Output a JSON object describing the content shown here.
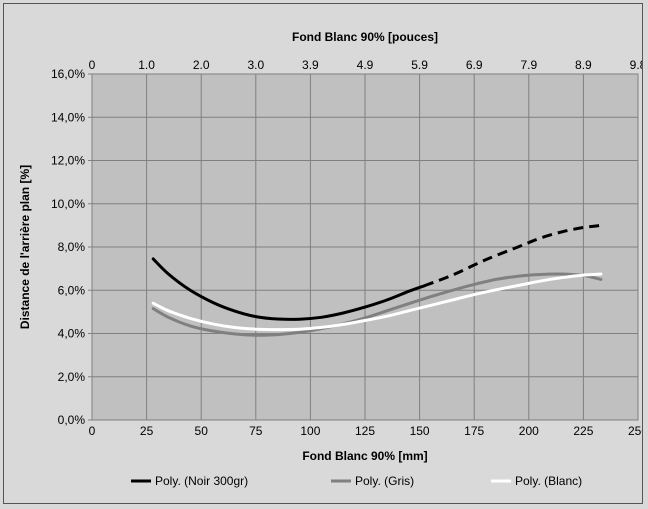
{
  "chart_data": {
    "type": "line",
    "title": "",
    "x_top_label": "Fond Blanc 90% [pouces]",
    "x_top_ticks": [
      "0",
      "1.0",
      "2.0",
      "3.0",
      "3.9",
      "4.9",
      "5.9",
      "6.9",
      "7.9",
      "8.9",
      "9.8"
    ],
    "xlabel": "Fond Blanc 90% [mm]",
    "ylabel": "Distance de l'arrière plan [%]",
    "xlim": [
      0,
      250
    ],
    "ylim": [
      0,
      16
    ],
    "x_ticks": [
      "0",
      "25",
      "50",
      "75",
      "100",
      "125",
      "150",
      "175",
      "200",
      "225",
      "250"
    ],
    "y_ticks": [
      "0,0%",
      "2,0%",
      "4,0%",
      "6,0%",
      "8,0%",
      "10,0%",
      "12,0%",
      "14,0%",
      "16,0%"
    ],
    "grid": true,
    "legend_position": "bottom",
    "series": [
      {
        "name": "Poly. (Noir 300gr)",
        "color": "#000000",
        "points": [
          [
            28,
            7.45
          ],
          [
            35,
            6.75
          ],
          [
            45,
            6.0
          ],
          [
            55,
            5.45
          ],
          [
            65,
            5.05
          ],
          [
            75,
            4.78
          ],
          [
            85,
            4.67
          ],
          [
            95,
            4.66
          ],
          [
            105,
            4.75
          ],
          [
            115,
            4.95
          ],
          [
            125,
            5.22
          ],
          [
            135,
            5.55
          ],
          [
            145,
            5.95
          ],
          [
            152,
            6.2
          ]
        ],
        "dashed_points": [
          [
            152,
            6.2
          ],
          [
            165,
            6.7
          ],
          [
            180,
            7.4
          ],
          [
            195,
            8.0
          ],
          [
            205,
            8.4
          ],
          [
            215,
            8.7
          ],
          [
            225,
            8.9
          ],
          [
            233,
            9.0
          ]
        ]
      },
      {
        "name": "Poly. (Gris)",
        "color": "#808080",
        "points": [
          [
            28,
            5.15
          ],
          [
            35,
            4.75
          ],
          [
            45,
            4.35
          ],
          [
            55,
            4.12
          ],
          [
            65,
            3.98
          ],
          [
            75,
            3.92
          ],
          [
            85,
            3.95
          ],
          [
            95,
            4.05
          ],
          [
            105,
            4.22
          ],
          [
            115,
            4.45
          ],
          [
            125,
            4.72
          ],
          [
            135,
            5.05
          ],
          [
            145,
            5.38
          ],
          [
            155,
            5.7
          ],
          [
            165,
            6.0
          ],
          [
            175,
            6.27
          ],
          [
            185,
            6.5
          ],
          [
            195,
            6.65
          ],
          [
            205,
            6.73
          ],
          [
            215,
            6.75
          ],
          [
            225,
            6.68
          ],
          [
            233,
            6.5
          ]
        ]
      },
      {
        "name": "Poly. (Blanc)",
        "color": "#ffffff",
        "points": [
          [
            28,
            5.4
          ],
          [
            35,
            5.05
          ],
          [
            45,
            4.7
          ],
          [
            55,
            4.45
          ],
          [
            65,
            4.28
          ],
          [
            75,
            4.2
          ],
          [
            85,
            4.18
          ],
          [
            95,
            4.2
          ],
          [
            105,
            4.28
          ],
          [
            115,
            4.42
          ],
          [
            125,
            4.6
          ],
          [
            135,
            4.8
          ],
          [
            145,
            5.05
          ],
          [
            155,
            5.3
          ],
          [
            165,
            5.55
          ],
          [
            175,
            5.8
          ],
          [
            185,
            6.02
          ],
          [
            195,
            6.22
          ],
          [
            205,
            6.42
          ],
          [
            215,
            6.58
          ],
          [
            225,
            6.7
          ],
          [
            233,
            6.75
          ]
        ]
      }
    ]
  }
}
